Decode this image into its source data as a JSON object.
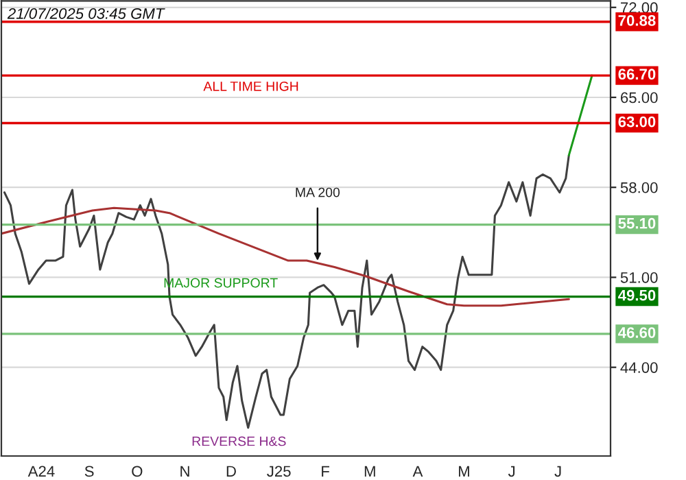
{
  "chart_data": {
    "type": "line",
    "xlim": [
      "2024-07-17",
      "2025-08-16"
    ],
    "ylim": [
      37.1,
      72.5
    ],
    "yticks": [
      {
        "value": 44,
        "label": "44.00"
      },
      {
        "value": 51,
        "label": "51.00"
      },
      {
        "value": 58,
        "label": "58.00"
      },
      {
        "value": 65,
        "label": "65.00"
      },
      {
        "value": 72,
        "label": "72.00"
      }
    ],
    "xticks": [
      {
        "value": "2024-08-12",
        "label": "A24"
      },
      {
        "value": "2024-09-12",
        "label": "S"
      },
      {
        "value": "2024-10-13",
        "label": "O"
      },
      {
        "value": "2024-11-13",
        "label": "N"
      },
      {
        "value": "2024-12-13",
        "label": "D"
      },
      {
        "value": "2025-01-13",
        "label": "J25"
      },
      {
        "value": "2025-02-12",
        "label": "F"
      },
      {
        "value": "2025-03-13",
        "label": "M"
      },
      {
        "value": "2025-04-13",
        "label": "A"
      },
      {
        "value": "2025-05-13",
        "label": "M"
      },
      {
        "value": "2025-06-13",
        "label": "J"
      },
      {
        "value": "2025-07-13",
        "label": "J"
      }
    ],
    "grid": "y",
    "series": [
      {
        "color": "#404040",
        "x": [
          "2024-07-19",
          "2024-07-23",
          "2024-07-26",
          "2024-07-30",
          "2024-08-04",
          "2024-08-10",
          "2024-08-15",
          "2024-08-21",
          "2024-08-26",
          "2024-08-28",
          "2024-09-01",
          "2024-09-03",
          "2024-09-06",
          "2024-09-12",
          "2024-09-15",
          "2024-09-19",
          "2024-09-24",
          "2024-09-27",
          "2024-10-01",
          "2024-10-06",
          "2024-10-11",
          "2024-10-15",
          "2024-10-18",
          "2024-10-22",
          "2024-10-25",
          "2024-10-29",
          "2024-11-02",
          "2024-11-03",
          "2024-11-05",
          "2024-11-10",
          "2024-11-15",
          "2024-11-20",
          "2024-11-24",
          "2024-11-29",
          "2024-12-02",
          "2024-12-05",
          "2024-12-08",
          "2024-12-10",
          "2024-12-14",
          "2024-12-17",
          "2024-12-20",
          "2024-12-24",
          "2024-12-29",
          "2025-01-02",
          "2025-01-05",
          "2025-01-08",
          "2025-01-14",
          "2025-01-16",
          "2025-01-20",
          "2025-01-25",
          "2025-01-29",
          "2025-02-01",
          "2025-02-02",
          "2025-02-07",
          "2025-02-11",
          "2025-02-16",
          "2025-02-18",
          "2025-02-23",
          "2025-02-27",
          "2025-03-03",
          "2025-03-05",
          "2025-03-08",
          "2025-03-11",
          "2025-03-14",
          "2025-03-19",
          "2025-03-25",
          "2025-03-27",
          "2025-03-31",
          "2025-04-04",
          "2025-04-07",
          "2025-04-11",
          "2025-04-16",
          "2025-04-20",
          "2025-04-25",
          "2025-04-28",
          "2025-05-02",
          "2025-05-06",
          "2025-05-09",
          "2025-05-12",
          "2025-05-16",
          "2025-05-20",
          "2025-05-25",
          "2025-05-31",
          "2025-06-02",
          "2025-06-06",
          "2025-06-11",
          "2025-06-16",
          "2025-06-20",
          "2025-06-25",
          "2025-06-29",
          "2025-07-03",
          "2025-07-08",
          "2025-07-14",
          "2025-07-18",
          "2025-07-20"
        ],
        "values": [
          57.6,
          56.6,
          54.4,
          53.0,
          50.5,
          51.6,
          52.3,
          52.3,
          52.6,
          56.6,
          57.8,
          55.5,
          53.4,
          54.8,
          55.8,
          51.6,
          53.7,
          54.4,
          56.0,
          55.7,
          55.5,
          56.6,
          55.8,
          57.1,
          55.8,
          54.4,
          52.0,
          49.5,
          48.1,
          47.3,
          46.3,
          44.9,
          45.6,
          46.7,
          47.3,
          42.4,
          41.7,
          39.9,
          42.8,
          44.1,
          41.4,
          39.3,
          41.7,
          43.5,
          43.8,
          41.7,
          40.3,
          40.3,
          43.1,
          44.1,
          46.3,
          47.3,
          49.8,
          50.2,
          50.4,
          49.8,
          49.5,
          47.3,
          48.4,
          48.4,
          45.6,
          50.2,
          52.3,
          48.1,
          49.1,
          50.9,
          51.2,
          49.1,
          47.3,
          44.5,
          43.8,
          45.6,
          45.2,
          44.5,
          43.8,
          47.3,
          48.4,
          50.9,
          52.6,
          51.2,
          51.2,
          51.2,
          51.2,
          55.8,
          56.6,
          58.4,
          56.9,
          58.4,
          55.8,
          58.7,
          59.0,
          58.7,
          57.6,
          58.7,
          60.5
        ]
      },
      {
        "color": "#a83232",
        "x": [
          "2024-07-17",
          "2024-08-15",
          "2024-09-14",
          "2024-09-28",
          "2024-10-25",
          "2024-11-03",
          "2024-12-05",
          "2025-01-19",
          "2025-01-31",
          "2025-02-18",
          "2025-03-10",
          "2025-04-07",
          "2025-05-02",
          "2025-05-13",
          "2025-06-06",
          "2025-07-20"
        ],
        "values": [
          54.4,
          55.3,
          56.2,
          56.4,
          56.2,
          56.0,
          54.4,
          52.3,
          52.3,
          51.8,
          51.1,
          49.9,
          48.9,
          48.8,
          48.8,
          49.3
        ]
      },
      {
        "color": "#1a9a1a",
        "x": [
          "2025-07-20",
          "2025-08-04"
        ],
        "values": [
          60.5,
          66.7
        ]
      }
    ],
    "ref_lines": [
      {
        "axis": "y",
        "value": 70.88,
        "label": "70.88",
        "color": "#e00000"
      },
      {
        "axis": "y",
        "value": 66.7,
        "label": "66.70",
        "color": "#e00000"
      },
      {
        "axis": "y",
        "value": 63.0,
        "label": "63.00",
        "color": "#e00000"
      },
      {
        "axis": "y",
        "value": 55.1,
        "label": "55.10",
        "color": "#7ac27a"
      },
      {
        "axis": "y",
        "value": 49.5,
        "label": "49.50",
        "color": "#007a00"
      },
      {
        "axis": "y",
        "value": 46.6,
        "label": "46.60",
        "color": "#7ac27a"
      }
    ],
    "annotations": [
      "21/07/2025 03:45 GMT",
      "ALL TIME HIGH",
      "MAJOR SUPPORT",
      "REVERSE H&S",
      {
        "text": "MA 200",
        "x": "2025-02-07",
        "y": 52.0
      }
    ]
  }
}
